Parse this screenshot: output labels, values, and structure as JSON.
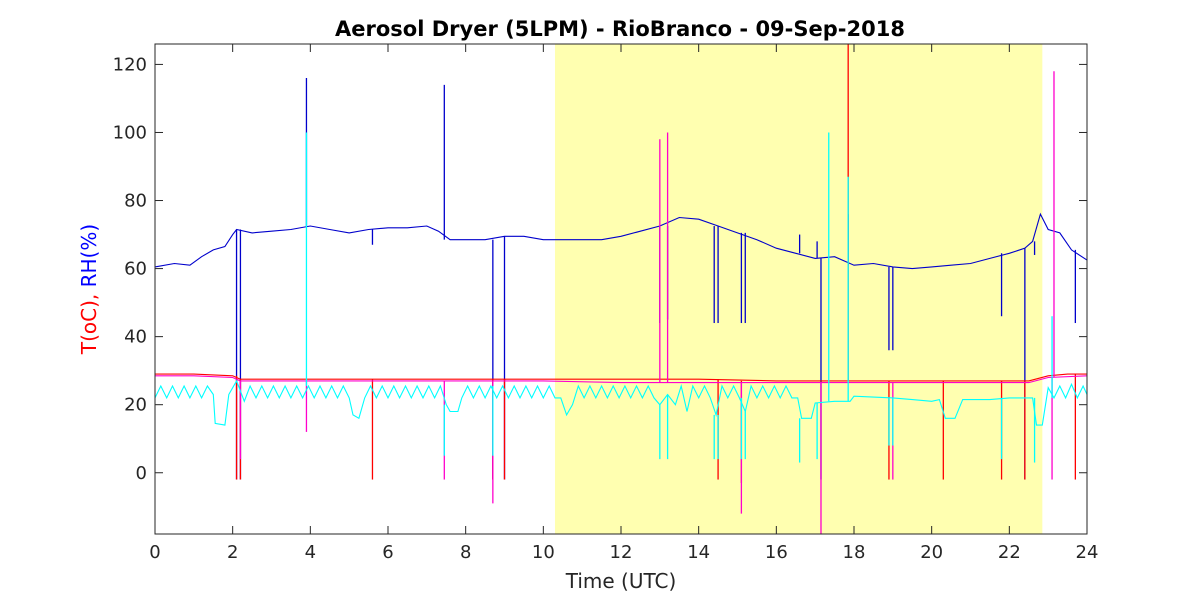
{
  "chart_data": {
    "type": "line",
    "title": "Aerosol Dryer (5LPM) - RioBranco - 09-Sep-2018",
    "xlabel": "Time (UTC)",
    "ylabel_parts": [
      {
        "text": "T(oC),",
        "color": "#ff0000"
      },
      {
        "text": " RH(%)",
        "color": "#0000ff"
      }
    ],
    "xlim": [
      0,
      24
    ],
    "ylim": [
      -18,
      126
    ],
    "xticks": [
      0,
      2,
      4,
      6,
      8,
      10,
      12,
      14,
      16,
      18,
      20,
      22,
      24
    ],
    "yticks": [
      0,
      20,
      40,
      60,
      80,
      100,
      120
    ],
    "grid": false,
    "shaded_region": {
      "x": [
        10.3,
        22.85
      ],
      "color": "#ffffb0"
    },
    "series": [
      {
        "color": "#0000cc",
        "points": [
          [
            0,
            60.5
          ],
          [
            0.5,
            61.5
          ],
          [
            0.9,
            61
          ],
          [
            1.2,
            63.5
          ],
          [
            1.5,
            65.5
          ],
          [
            1.8,
            66.5
          ],
          [
            2.0,
            70
          ],
          [
            2.1,
            71.5
          ],
          [
            2.5,
            70.5
          ],
          [
            3,
            71
          ],
          [
            3.5,
            71.5
          ],
          [
            4,
            72.5
          ],
          [
            4.5,
            71.5
          ],
          [
            5,
            70.5
          ],
          [
            5.5,
            71.5
          ],
          [
            6,
            72
          ],
          [
            6.5,
            72
          ],
          [
            7,
            72.5
          ],
          [
            7.3,
            71
          ],
          [
            7.6,
            68.5
          ],
          [
            8,
            68.5
          ],
          [
            8.5,
            68.5
          ],
          [
            9,
            69.5
          ],
          [
            9.5,
            69.5
          ],
          [
            10,
            68.5
          ],
          [
            10.5,
            68.5
          ],
          [
            11,
            68.5
          ],
          [
            11.5,
            68.5
          ],
          [
            12,
            69.5
          ],
          [
            12.5,
            71
          ],
          [
            13,
            72.5
          ],
          [
            13.5,
            75
          ],
          [
            14,
            74.5
          ],
          [
            14.5,
            72.5
          ],
          [
            15,
            70.5
          ],
          [
            15.5,
            68.5
          ],
          [
            16,
            66
          ],
          [
            16.5,
            64.5
          ],
          [
            17,
            63
          ],
          [
            17.5,
            63.5
          ],
          [
            18,
            61
          ],
          [
            18.5,
            61.5
          ],
          [
            19,
            60.5
          ],
          [
            19.5,
            60
          ],
          [
            20,
            60.5
          ],
          [
            20.5,
            61
          ],
          [
            21,
            61.5
          ],
          [
            21.5,
            63
          ],
          [
            22,
            64.5
          ],
          [
            22.4,
            66
          ],
          [
            22.6,
            68
          ],
          [
            22.8,
            76
          ],
          [
            23,
            71.5
          ],
          [
            23.3,
            70.5
          ],
          [
            23.6,
            65.5
          ],
          [
            24,
            62.5
          ]
        ],
        "spikes": [
          [
            2.1,
            -2
          ],
          [
            2.2,
            -2
          ],
          [
            3.9,
            116
          ],
          [
            5.6,
            67
          ],
          [
            7.45,
            114
          ],
          [
            8.7,
            -2
          ],
          [
            9.0,
            -2
          ],
          [
            13.0,
            44
          ],
          [
            13.2,
            45
          ],
          [
            14.4,
            44
          ],
          [
            14.5,
            44
          ],
          [
            15.1,
            44
          ],
          [
            15.2,
            44
          ],
          [
            16.6,
            70
          ],
          [
            17.05,
            68
          ],
          [
            17.15,
            -2
          ],
          [
            17.85,
            76
          ],
          [
            18.9,
            36
          ],
          [
            19.0,
            36
          ],
          [
            21.8,
            46
          ],
          [
            22.4,
            -2
          ],
          [
            22.65,
            64
          ],
          [
            23.7,
            44
          ]
        ]
      },
      {
        "color": "#ff0000",
        "points": [
          [
            0,
            29
          ],
          [
            1,
            29
          ],
          [
            2,
            28.5
          ],
          [
            2.2,
            27.5
          ],
          [
            4,
            27.5
          ],
          [
            6,
            27.5
          ],
          [
            8,
            27.5
          ],
          [
            10,
            27.5
          ],
          [
            12,
            27.5
          ],
          [
            14,
            27.5
          ],
          [
            16,
            27
          ],
          [
            18,
            27
          ],
          [
            20,
            27
          ],
          [
            22,
            27
          ],
          [
            22.5,
            27
          ],
          [
            23,
            28.5
          ],
          [
            23.5,
            29
          ],
          [
            24,
            29
          ]
        ],
        "spikes": [
          [
            2.1,
            -2
          ],
          [
            2.2,
            -2
          ],
          [
            5.6,
            -2
          ],
          [
            8.7,
            -2
          ],
          [
            9.0,
            -2
          ],
          [
            14.5,
            -2
          ],
          [
            15.1,
            -3
          ],
          [
            17.85,
            126
          ],
          [
            18.9,
            -2
          ],
          [
            20.3,
            -2
          ],
          [
            21.8,
            -2
          ],
          [
            22.4,
            -2
          ],
          [
            23.7,
            -2
          ]
        ]
      },
      {
        "color": "#ff00cc",
        "points": [
          [
            0,
            28.5
          ],
          [
            1,
            28.5
          ],
          [
            2,
            28
          ],
          [
            2.2,
            27
          ],
          [
            4,
            27
          ],
          [
            6,
            27
          ],
          [
            8,
            27
          ],
          [
            10,
            27
          ],
          [
            12,
            26.5
          ],
          [
            14,
            26.5
          ],
          [
            16,
            26.5
          ],
          [
            18,
            26.5
          ],
          [
            20,
            26.5
          ],
          [
            22,
            26.5
          ],
          [
            22.5,
            26.5
          ],
          [
            23,
            28
          ],
          [
            24,
            28.5
          ]
        ],
        "spikes": [
          [
            2.2,
            4
          ],
          [
            3.9,
            12
          ],
          [
            7.45,
            -2
          ],
          [
            8.7,
            -9
          ],
          [
            13.0,
            98
          ],
          [
            13.2,
            100
          ],
          [
            15.1,
            -12
          ],
          [
            17.15,
            -18
          ],
          [
            19.0,
            -2
          ],
          [
            23.1,
            -2
          ],
          [
            23.15,
            118
          ]
        ]
      },
      {
        "color": "#00ffff",
        "points": [
          [
            0,
            22
          ],
          [
            0.15,
            25.5
          ],
          [
            0.3,
            22
          ],
          [
            0.45,
            25.5
          ],
          [
            0.6,
            22
          ],
          [
            0.75,
            25.5
          ],
          [
            0.9,
            22
          ],
          [
            1.05,
            25.5
          ],
          [
            1.2,
            22
          ],
          [
            1.35,
            25.5
          ],
          [
            1.5,
            23
          ],
          [
            1.55,
            14.5
          ],
          [
            1.8,
            14
          ],
          [
            1.9,
            23
          ],
          [
            2.0,
            25
          ],
          [
            2.1,
            27
          ],
          [
            2.3,
            21
          ],
          [
            2.45,
            25.5
          ],
          [
            2.6,
            22
          ],
          [
            2.75,
            25.5
          ],
          [
            2.9,
            22
          ],
          [
            3.05,
            25.5
          ],
          [
            3.2,
            22
          ],
          [
            3.35,
            25.5
          ],
          [
            3.5,
            22
          ],
          [
            3.65,
            25.5
          ],
          [
            3.8,
            22
          ],
          [
            3.95,
            25.5
          ],
          [
            4.1,
            22
          ],
          [
            4.25,
            25.5
          ],
          [
            4.4,
            22
          ],
          [
            4.55,
            25.5
          ],
          [
            4.7,
            22
          ],
          [
            4.85,
            25.5
          ],
          [
            5.0,
            22
          ],
          [
            5.1,
            17
          ],
          [
            5.25,
            16
          ],
          [
            5.4,
            22
          ],
          [
            5.55,
            25.5
          ],
          [
            5.7,
            22
          ],
          [
            5.85,
            25.5
          ],
          [
            6.0,
            22
          ],
          [
            6.15,
            25.5
          ],
          [
            6.3,
            22
          ],
          [
            6.45,
            25.5
          ],
          [
            6.6,
            22
          ],
          [
            6.75,
            25.5
          ],
          [
            6.9,
            22
          ],
          [
            7.05,
            25.5
          ],
          [
            7.2,
            22
          ],
          [
            7.35,
            25.5
          ],
          [
            7.5,
            20
          ],
          [
            7.6,
            18
          ],
          [
            7.8,
            18
          ],
          [
            7.9,
            22
          ],
          [
            8.05,
            25.5
          ],
          [
            8.2,
            22
          ],
          [
            8.35,
            25.5
          ],
          [
            8.5,
            22
          ],
          [
            8.65,
            25.5
          ],
          [
            8.8,
            22
          ],
          [
            8.95,
            25.5
          ],
          [
            9.1,
            22
          ],
          [
            9.25,
            25.5
          ],
          [
            9.4,
            22
          ],
          [
            9.55,
            25.5
          ],
          [
            9.7,
            22
          ],
          [
            9.85,
            25.5
          ],
          [
            10.0,
            22
          ],
          [
            10.15,
            25.5
          ],
          [
            10.3,
            22
          ],
          [
            10.45,
            22
          ],
          [
            10.6,
            17
          ],
          [
            10.75,
            20
          ],
          [
            10.9,
            25.5
          ],
          [
            11.05,
            22
          ],
          [
            11.2,
            25.5
          ],
          [
            11.35,
            22
          ],
          [
            11.5,
            25.5
          ],
          [
            11.65,
            22
          ],
          [
            11.8,
            25.5
          ],
          [
            11.95,
            22
          ],
          [
            12.1,
            25.5
          ],
          [
            12.25,
            22
          ],
          [
            12.4,
            25.5
          ],
          [
            12.55,
            22
          ],
          [
            12.7,
            25.5
          ],
          [
            12.85,
            22
          ],
          [
            13.0,
            20
          ],
          [
            13.2,
            23
          ],
          [
            13.4,
            20
          ],
          [
            13.55,
            25.5
          ],
          [
            13.7,
            18
          ],
          [
            13.85,
            25.5
          ],
          [
            14.0,
            22
          ],
          [
            14.15,
            25.5
          ],
          [
            14.3,
            22
          ],
          [
            14.45,
            17
          ],
          [
            14.6,
            25.5
          ],
          [
            14.75,
            22
          ],
          [
            14.9,
            25.5
          ],
          [
            15.05,
            22
          ],
          [
            15.2,
            18
          ],
          [
            15.35,
            25.5
          ],
          [
            15.5,
            22
          ],
          [
            15.65,
            25.5
          ],
          [
            15.8,
            22
          ],
          [
            15.95,
            25.5
          ],
          [
            16.1,
            22
          ],
          [
            16.25,
            25.5
          ],
          [
            16.4,
            22
          ],
          [
            16.55,
            22
          ],
          [
            16.65,
            16
          ],
          [
            16.9,
            16
          ],
          [
            17.0,
            20.5
          ],
          [
            17.5,
            21
          ],
          [
            17.9,
            21
          ],
          [
            18,
            22.5
          ],
          [
            19,
            22
          ],
          [
            19.5,
            21.5
          ],
          [
            20,
            21
          ],
          [
            20.2,
            21.5
          ],
          [
            20.35,
            16
          ],
          [
            20.6,
            16
          ],
          [
            20.8,
            21.5
          ],
          [
            21.5,
            21.5
          ],
          [
            22,
            22
          ],
          [
            22.6,
            22
          ],
          [
            22.7,
            14
          ],
          [
            22.85,
            14
          ],
          [
            23.0,
            25
          ],
          [
            23.15,
            22
          ],
          [
            23.3,
            25.5
          ],
          [
            23.45,
            22
          ],
          [
            23.6,
            26
          ],
          [
            23.75,
            22
          ],
          [
            23.9,
            25.5
          ],
          [
            24,
            23
          ]
        ],
        "spikes": [
          [
            3.9,
            100
          ],
          [
            7.45,
            5
          ],
          [
            8.7,
            5
          ],
          [
            13.0,
            4
          ],
          [
            13.2,
            4
          ],
          [
            14.4,
            4
          ],
          [
            14.5,
            4
          ],
          [
            15.1,
            4
          ],
          [
            15.2,
            4
          ],
          [
            16.6,
            3
          ],
          [
            17.05,
            4
          ],
          [
            17.35,
            100
          ],
          [
            17.85,
            87
          ],
          [
            18.9,
            8
          ],
          [
            19.0,
            8
          ],
          [
            21.8,
            4
          ],
          [
            22.65,
            3
          ],
          [
            23.1,
            46
          ]
        ]
      }
    ]
  }
}
